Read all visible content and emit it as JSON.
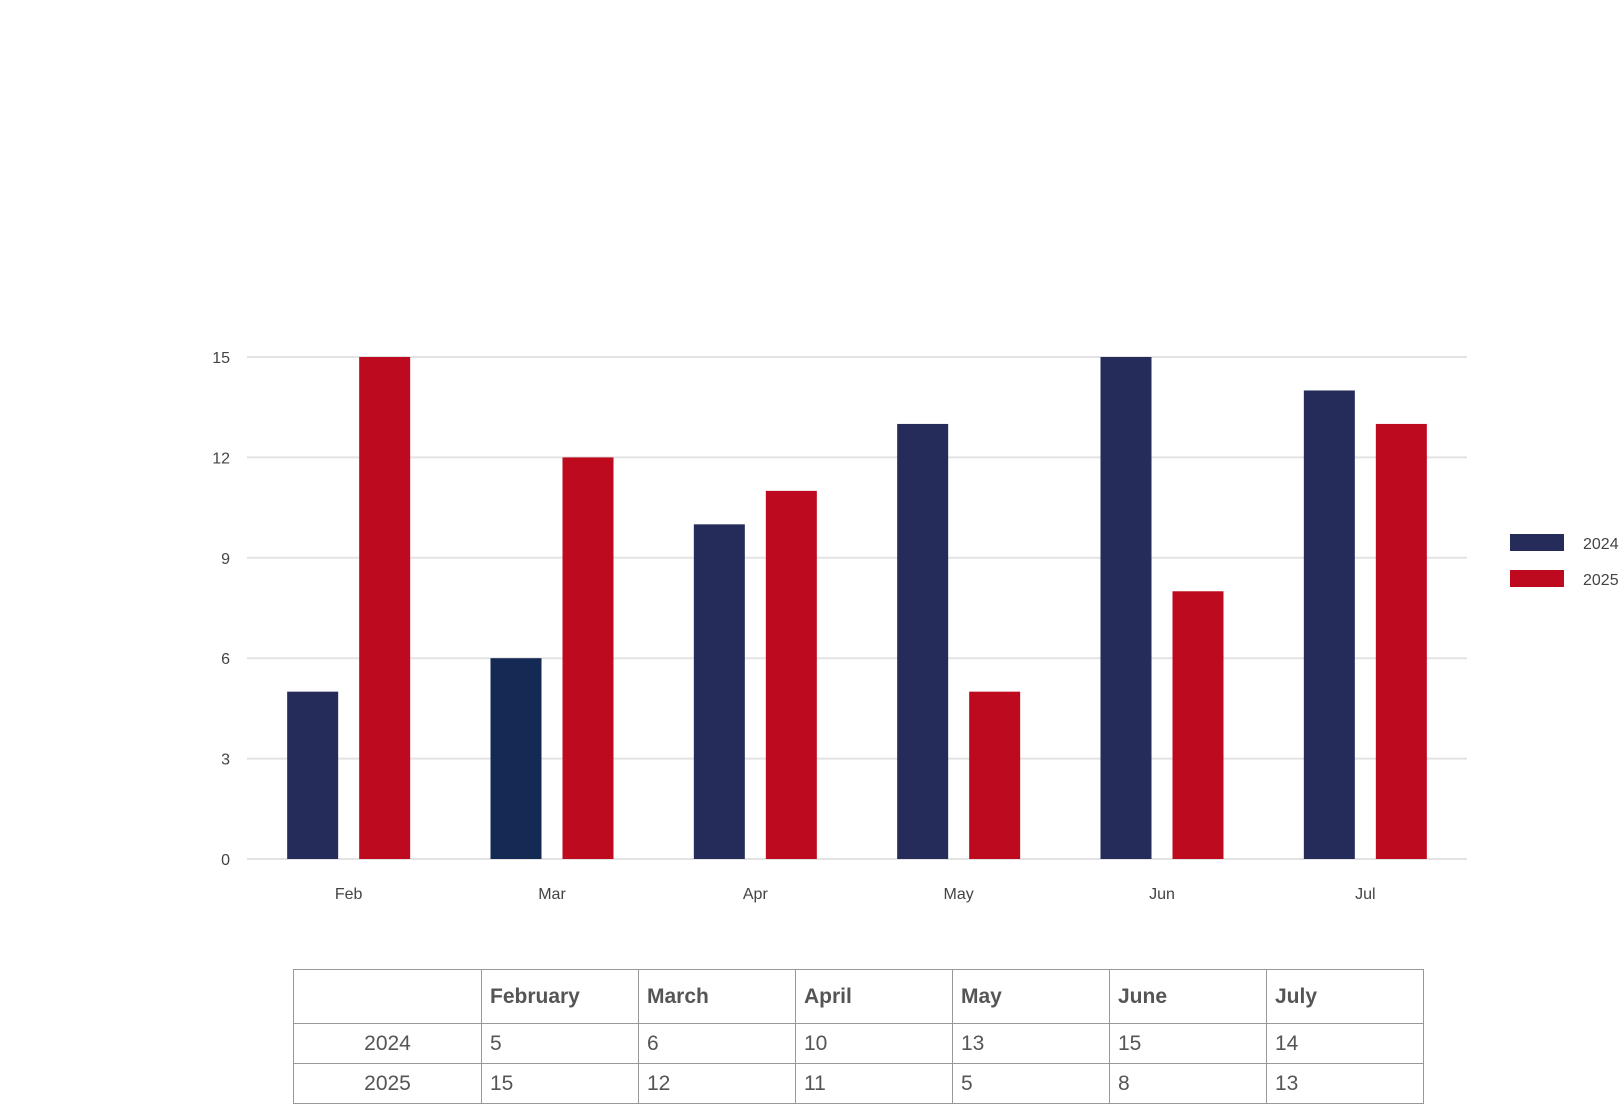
{
  "chart_data": {
    "type": "bar",
    "categories": [
      "Feb",
      "Mar",
      "Apr",
      "May",
      "Jun",
      "Jul"
    ],
    "series": [
      {
        "name": "2024",
        "values": [
          5,
          6,
          10,
          13,
          15,
          14
        ],
        "color": "#252C5A"
      },
      {
        "name": "2025",
        "values": [
          15,
          12,
          11,
          5,
          8,
          13
        ],
        "color": "#BE0A1E"
      }
    ],
    "highlight": {
      "series": 0,
      "index": 1,
      "color": "#142A55"
    },
    "yticks": [
      0,
      3,
      6,
      9,
      12,
      15
    ],
    "ylim": [
      0,
      15
    ],
    "grid": true,
    "legend_position": "right"
  },
  "table": {
    "columns": [
      "",
      "February",
      "March",
      "April",
      "May",
      "June",
      "July"
    ],
    "rows": [
      {
        "label": "2024",
        "values": [
          "5",
          "6",
          "10",
          "13",
          "15",
          "14"
        ]
      },
      {
        "label": "2025",
        "values": [
          "15",
          "12",
          "11",
          "5",
          "8",
          "13"
        ]
      }
    ]
  }
}
